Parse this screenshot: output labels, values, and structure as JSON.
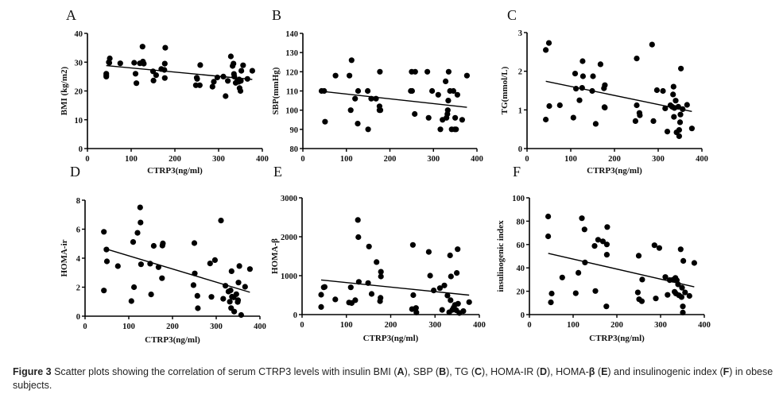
{
  "chart_data": [
    {
      "id": "A",
      "type": "scatter",
      "panel_letter": "A",
      "xlabel": "CTRP3(ng/ml)",
      "ylabel": "BMI (kg/m2)",
      "xlim": [
        0,
        400
      ],
      "ylim": [
        0,
        40
      ],
      "xticks": [
        0,
        100,
        200,
        300,
        400
      ],
      "yticks": [
        0,
        10,
        20,
        30,
        40
      ],
      "show_xlabel": true,
      "fit_line": {
        "x": [
          43,
          377
        ],
        "y": [
          28.8,
          24.0
        ]
      },
      "points": [
        [
          43,
          25.5
        ],
        [
          43,
          26
        ],
        [
          43,
          25
        ],
        [
          49,
          30
        ],
        [
          51,
          31.3
        ],
        [
          50,
          29.8
        ],
        [
          75,
          29.6
        ],
        [
          107,
          29.8
        ],
        [
          110,
          26
        ],
        [
          112,
          22.7
        ],
        [
          120,
          29.6
        ],
        [
          125,
          29.8
        ],
        [
          126,
          35.4
        ],
        [
          127,
          30.2
        ],
        [
          129,
          29.5
        ],
        [
          150,
          26.8
        ],
        [
          151,
          23.6
        ],
        [
          157,
          25.5
        ],
        [
          169,
          27.6
        ],
        [
          176,
          27.3
        ],
        [
          177,
          24.5
        ],
        [
          177,
          29.5
        ],
        [
          178,
          35
        ],
        [
          248,
          22
        ],
        [
          250,
          24.6
        ],
        [
          251,
          24.2
        ],
        [
          257,
          22
        ],
        [
          258,
          29
        ],
        [
          286,
          21.5
        ],
        [
          289,
          23.2
        ],
        [
          297,
          24.7
        ],
        [
          311,
          25
        ],
        [
          316,
          18.2
        ],
        [
          321,
          23.5
        ],
        [
          328,
          32
        ],
        [
          332,
          28.7
        ],
        [
          334,
          29.5
        ],
        [
          335,
          25.9
        ],
        [
          336,
          25
        ],
        [
          339,
          22.8
        ],
        [
          343,
          23.5
        ],
        [
          346,
          23.2
        ],
        [
          347,
          24
        ],
        [
          348,
          21
        ],
        [
          350,
          20
        ],
        [
          351,
          23.5
        ],
        [
          352,
          27
        ],
        [
          356,
          28.9
        ],
        [
          366,
          24.2
        ],
        [
          377,
          27
        ]
      ]
    },
    {
      "id": "B",
      "type": "scatter",
      "panel_letter": "B",
      "xlabel": "CTRP3(ng/ml)",
      "ylabel": "SBP(mmHg)",
      "xlim": [
        0,
        400
      ],
      "ylim": [
        80,
        140
      ],
      "xticks": [
        0,
        100,
        200,
        300,
        400
      ],
      "yticks": [
        80,
        90,
        100,
        110,
        120,
        130,
        140
      ],
      "show_xlabel": false,
      "fit_line": {
        "x": [
          43,
          377
        ],
        "y": [
          109.8,
          101.5
        ]
      },
      "points": [
        [
          43,
          110
        ],
        [
          49,
          110
        ],
        [
          51,
          94
        ],
        [
          75,
          118
        ],
        [
          107,
          118
        ],
        [
          110,
          100
        ],
        [
          112,
          126
        ],
        [
          120,
          106
        ],
        [
          126,
          93
        ],
        [
          127,
          110
        ],
        [
          149,
          110
        ],
        [
          150,
          90
        ],
        [
          157,
          106
        ],
        [
          168,
          106
        ],
        [
          176,
          102
        ],
        [
          176,
          100
        ],
        [
          177,
          120
        ],
        [
          178,
          100
        ],
        [
          248,
          110
        ],
        [
          250,
          120
        ],
        [
          251,
          110
        ],
        [
          257,
          98
        ],
        [
          258,
          120
        ],
        [
          286,
          120
        ],
        [
          289,
          96
        ],
        [
          297,
          110
        ],
        [
          311,
          108
        ],
        [
          316,
          90
        ],
        [
          321,
          95
        ],
        [
          328,
          115
        ],
        [
          330,
          96
        ],
        [
          332,
          98
        ],
        [
          333,
          100
        ],
        [
          334,
          105
        ],
        [
          335,
          120
        ],
        [
          338,
          110
        ],
        [
          342,
          90
        ],
        [
          346,
          110
        ],
        [
          349,
          90
        ],
        [
          350,
          96
        ],
        [
          352,
          90
        ],
        [
          355,
          108
        ],
        [
          366,
          95
        ],
        [
          377,
          118
        ]
      ]
    },
    {
      "id": "C",
      "type": "scatter",
      "panel_letter": "C",
      "xlabel": "CTRP3(ng/ml)",
      "ylabel": "TG(mmol/L)",
      "xlim": [
        0,
        400
      ],
      "ylim": [
        0,
        3
      ],
      "xticks": [
        0,
        100,
        200,
        300,
        400
      ],
      "yticks": [
        0,
        1,
        2,
        3
      ],
      "show_xlabel": true,
      "fit_line": {
        "x": [
          43,
          377
        ],
        "y": [
          1.74,
          0.96
        ]
      },
      "points": [
        [
          43,
          2.55
        ],
        [
          43,
          0.75
        ],
        [
          50,
          2.73
        ],
        [
          51,
          1.1
        ],
        [
          75,
          1.12
        ],
        [
          106,
          0.8
        ],
        [
          110,
          1.94
        ],
        [
          112,
          1.55
        ],
        [
          120,
          1.25
        ],
        [
          126,
          1.57
        ],
        [
          127,
          2.26
        ],
        [
          128,
          1.87
        ],
        [
          149,
          1.49
        ],
        [
          151,
          1.87
        ],
        [
          157,
          0.64
        ],
        [
          168,
          2.18
        ],
        [
          176,
          1.56
        ],
        [
          177,
          1.07
        ],
        [
          178,
          1.64
        ],
        [
          178,
          1.06
        ],
        [
          248,
          0.71
        ],
        [
          251,
          2.33
        ],
        [
          251,
          1.12
        ],
        [
          257,
          0.92
        ],
        [
          258,
          0.86
        ],
        [
          286,
          2.69
        ],
        [
          289,
          0.71
        ],
        [
          297,
          1.51
        ],
        [
          311,
          1.49
        ],
        [
          316,
          1.04
        ],
        [
          321,
          0.44
        ],
        [
          328,
          1.12
        ],
        [
          332,
          1.08
        ],
        [
          334,
          1.4
        ],
        [
          335,
          1.6
        ],
        [
          336,
          0.82
        ],
        [
          337,
          1.05
        ],
        [
          340,
          1.24
        ],
        [
          342,
          0.42
        ],
        [
          346,
          1.08
        ],
        [
          348,
          0.48
        ],
        [
          348,
          0.32
        ],
        [
          350,
          0.68
        ],
        [
          351,
          0.88
        ],
        [
          352,
          2.07
        ],
        [
          356,
          1.02
        ],
        [
          366,
          1.13
        ],
        [
          377,
          0.52
        ]
      ]
    },
    {
      "id": "D",
      "type": "scatter",
      "panel_letter": "D",
      "xlabel": "CTRP3(ng/ml)",
      "ylabel": "HOMA-ir",
      "xlim": [
        0,
        400
      ],
      "ylim": [
        0,
        8
      ],
      "xticks": [
        0,
        100,
        200,
        300,
        400
      ],
      "yticks": [
        0,
        2,
        4,
        6,
        8
      ],
      "show_xlabel": true,
      "fit_line": {
        "x": [
          43,
          377
        ],
        "y": [
          4.68,
          1.65
        ]
      },
      "points": [
        [
          43,
          5.82
        ],
        [
          43,
          1.77
        ],
        [
          49,
          4.6
        ],
        [
          50,
          3.78
        ],
        [
          75,
          3.45
        ],
        [
          106,
          1.04
        ],
        [
          110,
          5.12
        ],
        [
          112,
          2.0
        ],
        [
          120,
          5.75
        ],
        [
          126,
          7.5
        ],
        [
          127,
          6.46
        ],
        [
          128,
          3.58
        ],
        [
          149,
          3.62
        ],
        [
          151,
          1.5
        ],
        [
          157,
          4.85
        ],
        [
          168,
          3.38
        ],
        [
          176,
          2.62
        ],
        [
          177,
          4.87
        ],
        [
          178,
          5.02
        ],
        [
          248,
          2.14
        ],
        [
          250,
          5.04
        ],
        [
          251,
          2.95
        ],
        [
          257,
          1.4
        ],
        [
          258,
          0.55
        ],
        [
          286,
          3.64
        ],
        [
          289,
          1.33
        ],
        [
          297,
          3.87
        ],
        [
          311,
          6.6
        ],
        [
          316,
          1.2
        ],
        [
          321,
          2.1
        ],
        [
          328,
          1.7
        ],
        [
          331,
          1.0
        ],
        [
          333,
          1.78
        ],
        [
          334,
          0.56
        ],
        [
          335,
          3.1
        ],
        [
          336,
          1.34
        ],
        [
          340,
          1.3
        ],
        [
          341,
          0.32
        ],
        [
          346,
          1.52
        ],
        [
          349,
          0.98
        ],
        [
          350,
          1.1
        ],
        [
          351,
          2.32
        ],
        [
          353,
          3.46
        ],
        [
          357,
          0.08
        ],
        [
          366,
          2.03
        ],
        [
          377,
          3.25
        ]
      ]
    },
    {
      "id": "E",
      "type": "scatter",
      "panel_letter": "E",
      "xlabel": "CTRP3(ng/ml)",
      "ylabel": "HOMA-β",
      "xlim": [
        0,
        400
      ],
      "ylim": [
        0,
        3000
      ],
      "xticks": [
        0,
        100,
        200,
        300,
        400
      ],
      "yticks": [
        0,
        1000,
        2000,
        3000
      ],
      "show_xlabel": true,
      "fit_line": {
        "x": [
          43,
          377
        ],
        "y": [
          890,
          500
        ]
      },
      "points": [
        [
          43,
          510
        ],
        [
          43,
          195
        ],
        [
          49,
          700
        ],
        [
          51,
          710
        ],
        [
          75,
          390
        ],
        [
          106,
          310
        ],
        [
          110,
          700
        ],
        [
          112,
          295
        ],
        [
          120,
          370
        ],
        [
          126,
          2430
        ],
        [
          127,
          1990
        ],
        [
          128,
          840
        ],
        [
          149,
          810
        ],
        [
          151,
          1750
        ],
        [
          157,
          530
        ],
        [
          168,
          1350
        ],
        [
          176,
          345
        ],
        [
          177,
          430
        ],
        [
          178,
          1100
        ],
        [
          178,
          980
        ],
        [
          248,
          140
        ],
        [
          250,
          1790
        ],
        [
          251,
          500
        ],
        [
          257,
          170
        ],
        [
          258,
          55
        ],
        [
          286,
          1610
        ],
        [
          289,
          1000
        ],
        [
          297,
          620
        ],
        [
          311,
          680
        ],
        [
          316,
          120
        ],
        [
          321,
          750
        ],
        [
          328,
          490
        ],
        [
          332,
          60
        ],
        [
          334,
          1520
        ],
        [
          335,
          370
        ],
        [
          336,
          980
        ],
        [
          339,
          120
        ],
        [
          342,
          180
        ],
        [
          345,
          250
        ],
        [
          348,
          110
        ],
        [
          349,
          1070
        ],
        [
          351,
          1680
        ],
        [
          352,
          280
        ],
        [
          355,
          40
        ],
        [
          364,
          90
        ],
        [
          377,
          320
        ]
      ]
    },
    {
      "id": "F",
      "type": "scatter",
      "panel_letter": "F",
      "xlabel": "CTRP3(ng/ml)",
      "ylabel": "insulinogenic index",
      "xlim": [
        0,
        400
      ],
      "ylim": [
        0,
        100
      ],
      "xticks": [
        0,
        100,
        200,
        300,
        400
      ],
      "yticks": [
        0,
        20,
        40,
        60,
        80,
        100
      ],
      "show_xlabel": true,
      "fit_line": {
        "x": [
          43,
          377
        ],
        "y": [
          52.4,
          23.8
        ]
      },
      "points": [
        [
          43,
          84
        ],
        [
          43,
          67
        ],
        [
          49,
          10.5
        ],
        [
          51,
          18
        ],
        [
          75,
          31.8
        ],
        [
          106,
          18.3
        ],
        [
          112,
          35.8
        ],
        [
          120,
          82.5
        ],
        [
          126,
          72.9
        ],
        [
          127,
          44.6
        ],
        [
          149,
          58.8
        ],
        [
          151,
          20.2
        ],
        [
          157,
          64.1
        ],
        [
          168,
          62.7
        ],
        [
          176,
          7
        ],
        [
          177,
          51.3
        ],
        [
          177,
          60.1
        ],
        [
          178,
          75
        ],
        [
          248,
          19
        ],
        [
          250,
          50.4
        ],
        [
          251,
          13.1
        ],
        [
          257,
          11.4
        ],
        [
          258,
          30
        ],
        [
          286,
          59.4
        ],
        [
          289,
          13.8
        ],
        [
          297,
          57
        ],
        [
          311,
          32.2
        ],
        [
          316,
          16.9
        ],
        [
          321,
          29.5
        ],
        [
          328,
          29.8
        ],
        [
          331,
          30
        ],
        [
          332,
          19.5
        ],
        [
          334,
          31.4
        ],
        [
          335,
          18
        ],
        [
          337,
          29.4
        ],
        [
          340,
          25.9
        ],
        [
          342,
          16.5
        ],
        [
          346,
          55.9
        ],
        [
          348,
          15
        ],
        [
          349,
          23
        ],
        [
          351,
          7
        ],
        [
          351,
          1.8
        ],
        [
          352,
          46
        ],
        [
          356,
          19
        ],
        [
          366,
          16
        ],
        [
          377,
          44.2
        ]
      ]
    }
  ],
  "caption": {
    "figure_label": "Figure 3",
    "text_parts": [
      {
        "t": " Scatter plots showing the correlation of serum CTRP3 levels with insulin BMI (",
        "b": false
      },
      {
        "t": "A",
        "b": true
      },
      {
        "t": "), SBP (",
        "b": false
      },
      {
        "t": "B",
        "b": true
      },
      {
        "t": "), TG (",
        "b": false
      },
      {
        "t": "C",
        "b": true
      },
      {
        "t": "), HOMA-IR (",
        "b": false
      },
      {
        "t": "D",
        "b": true
      },
      {
        "t": "), HOMA-",
        "b": false
      },
      {
        "t": "β",
        "b": true
      },
      {
        "t": " (",
        "b": false
      },
      {
        "t": "E",
        "b": true
      },
      {
        "t": ") and insulinogenic index (",
        "b": false
      },
      {
        "t": "F",
        "b": true
      },
      {
        "t": ") in obese subjects.",
        "b": false
      }
    ]
  }
}
